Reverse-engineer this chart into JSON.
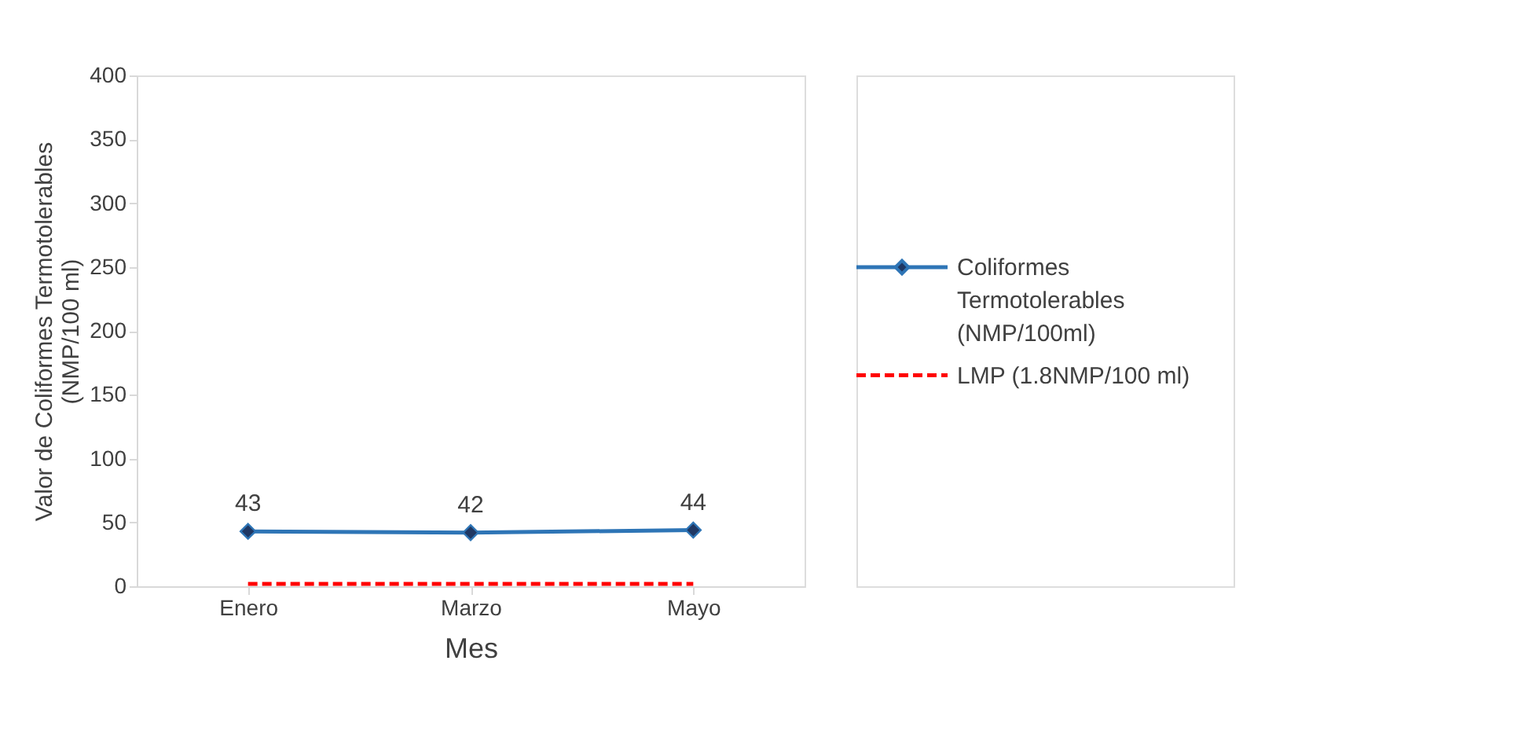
{
  "chart_data": {
    "type": "line",
    "xlabel": "Mes",
    "ylabel": "Valor de Coliformes Termotolerables (NMP/100 ml)",
    "categories": [
      "Enero",
      "Marzo",
      "Mayo"
    ],
    "series": [
      {
        "name": "Coliformes Termotolerables (NMP/100ml)",
        "color": "#2e75b6",
        "values": [
          43,
          42,
          44
        ],
        "value_labels": [
          "43",
          "42",
          "44"
        ],
        "marker": "diamond",
        "line_style": "solid"
      },
      {
        "name": "LMP (1.8NMP/100 ml)",
        "color": "#ff0000",
        "values": [
          1.8,
          1.8,
          1.8
        ],
        "marker": "none",
        "line_style": "dashed"
      }
    ],
    "ylim": [
      0,
      400
    ],
    "yticks": [
      0,
      50,
      100,
      150,
      200,
      250,
      300,
      350,
      400
    ],
    "grid": false,
    "legend": "right"
  }
}
